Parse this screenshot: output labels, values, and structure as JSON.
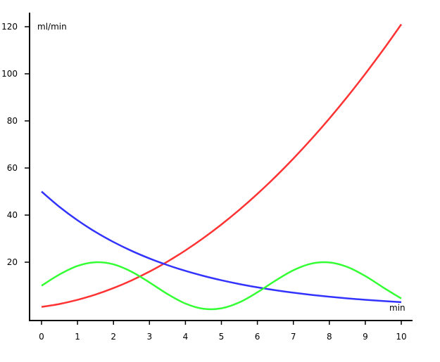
{
  "chart_data": {
    "type": "line",
    "title": "",
    "xlabel": "min",
    "ylabel": "ml/min",
    "xlim": [
      0,
      10
    ],
    "ylim": [
      0,
      120
    ],
    "xticks": [
      0,
      1,
      2,
      3,
      4,
      5,
      6,
      7,
      8,
      9,
      10
    ],
    "yticks": [
      20,
      40,
      60,
      80,
      100,
      120
    ],
    "grid": false,
    "x": [
      0,
      0.5,
      1,
      1.5,
      2,
      2.5,
      3,
      3.5,
      4,
      4.5,
      5,
      5.5,
      6,
      6.5,
      7,
      7.5,
      8,
      8.5,
      9,
      9.5,
      10
    ],
    "series": [
      {
        "name": "red",
        "color": "#ff3333",
        "values": [
          1,
          2.25,
          4,
          6.25,
          9,
          12.25,
          16,
          20.25,
          25,
          30.25,
          36,
          42.25,
          49,
          56.25,
          64,
          72.25,
          81,
          90.25,
          100,
          110.25,
          121
        ]
      },
      {
        "name": "blue",
        "color": "#3333ff",
        "values": [
          50,
          43.47,
          37.79,
          32.85,
          28.56,
          24.83,
          21.59,
          18.77,
          16.31,
          14.18,
          12.33,
          10.72,
          9.32,
          8.1,
          7.04,
          6.12,
          5.32,
          4.63,
          4.02,
          3.5,
          3.04
        ]
      },
      {
        "name": "green",
        "color": "#33ff33",
        "values": [
          10,
          14.79,
          18.41,
          19.97,
          19.09,
          15.98,
          11.41,
          6.49,
          2.43,
          0.22,
          0.41,
          2.94,
          7.21,
          12.15,
          16.57,
          19.38,
          19.89,
          17.98,
          14.12,
          9.25,
          4.56
        ]
      }
    ]
  }
}
